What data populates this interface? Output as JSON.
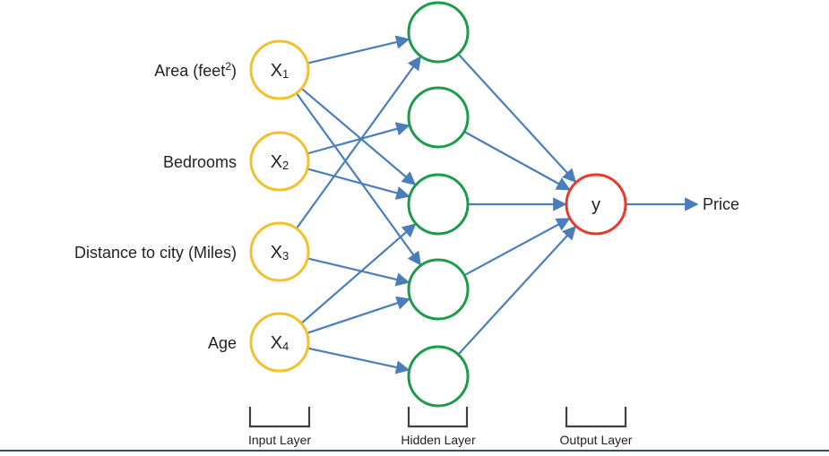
{
  "input_layer": {
    "label": "Input Layer",
    "color": "#f2c12e",
    "nodes": [
      {
        "var": "X",
        "sub": "1",
        "feature": "Area (feet",
        "feature_sup": "2",
        "feature_end": ")"
      },
      {
        "var": "X",
        "sub": "2",
        "feature": "Bedrooms",
        "feature_sup": "",
        "feature_end": ""
      },
      {
        "var": "X",
        "sub": "3",
        "feature": "Distance to city (Miles)",
        "feature_sup": "",
        "feature_end": ""
      },
      {
        "var": "X",
        "sub": "4",
        "feature": "Age",
        "feature_sup": "",
        "feature_end": ""
      }
    ]
  },
  "hidden_layer": {
    "label": "Hidden Layer",
    "color": "#1e9a4b",
    "node_count": 5
  },
  "output_layer": {
    "label": "Output Layer",
    "color": "#e53b2c",
    "node": {
      "var": "y"
    },
    "output_label": "Price"
  },
  "connection_color": "#4a7ebb",
  "input_to_hidden": [
    [
      1,
      3,
      4
    ],
    [
      2,
      3
    ],
    [
      1,
      4
    ],
    [
      3,
      4,
      5
    ]
  ],
  "hidden_to_output": [
    1,
    2,
    3,
    4,
    5
  ]
}
